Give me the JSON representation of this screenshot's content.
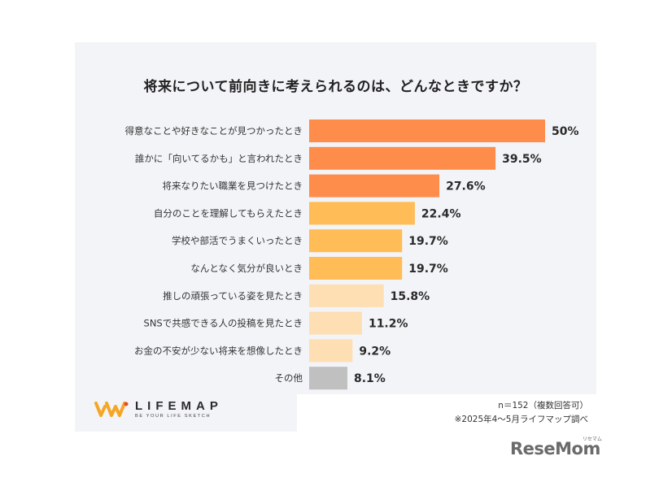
{
  "chart_data": {
    "type": "bar",
    "orientation": "horizontal",
    "title": "将来について前向きに考えられるのは、どんなときですか？",
    "categories": [
      "得意なことや好きなことが見つかったとき",
      "誰かに「向いてるかも」と言われたとき",
      "将来なりたい職業を見つけたとき",
      "自分のことを理解してもらえたとき",
      "学校や部活でうまくいったとき",
      "なんとなく気分が良いとき",
      "推しの頑張っている姿を見たとき",
      "SNSで共感できる人の投稿を見たとき",
      "お金の不安が少ない将来を想像したとき",
      "その他"
    ],
    "values": [
      50,
      39.5,
      27.6,
      22.4,
      19.7,
      19.7,
      15.8,
      11.2,
      9.2,
      8.1
    ],
    "value_labels": [
      "50%",
      "39.5%",
      "27.6%",
      "22.4%",
      "19.7%",
      "19.7%",
      "15.8%",
      "11.2%",
      "9.2%",
      "8.1%"
    ],
    "bar_colors": [
      "#fe8c4b",
      "#fe8c4b",
      "#fe8c4b",
      "#ffbc57",
      "#ffbc57",
      "#ffbc57",
      "#fedeb3",
      "#fedeb3",
      "#fedeb3",
      "#c0c0c0"
    ],
    "xlim": [
      0,
      50
    ],
    "grid": false,
    "legend": "none"
  },
  "notes": {
    "sample": "n＝152（複数回答可）",
    "source": "※2025年4～5月ライフマップ調べ"
  },
  "brand": {
    "name": "LIFEMAP",
    "tagline": "BE YOUR LIFE SKETCH",
    "icon": "lifemap-logo-icon",
    "colors": {
      "primary": "#f5a623",
      "accent": "#e8472a"
    }
  },
  "source_logo": {
    "text": "ReseMom",
    "kana": "リセマム"
  }
}
